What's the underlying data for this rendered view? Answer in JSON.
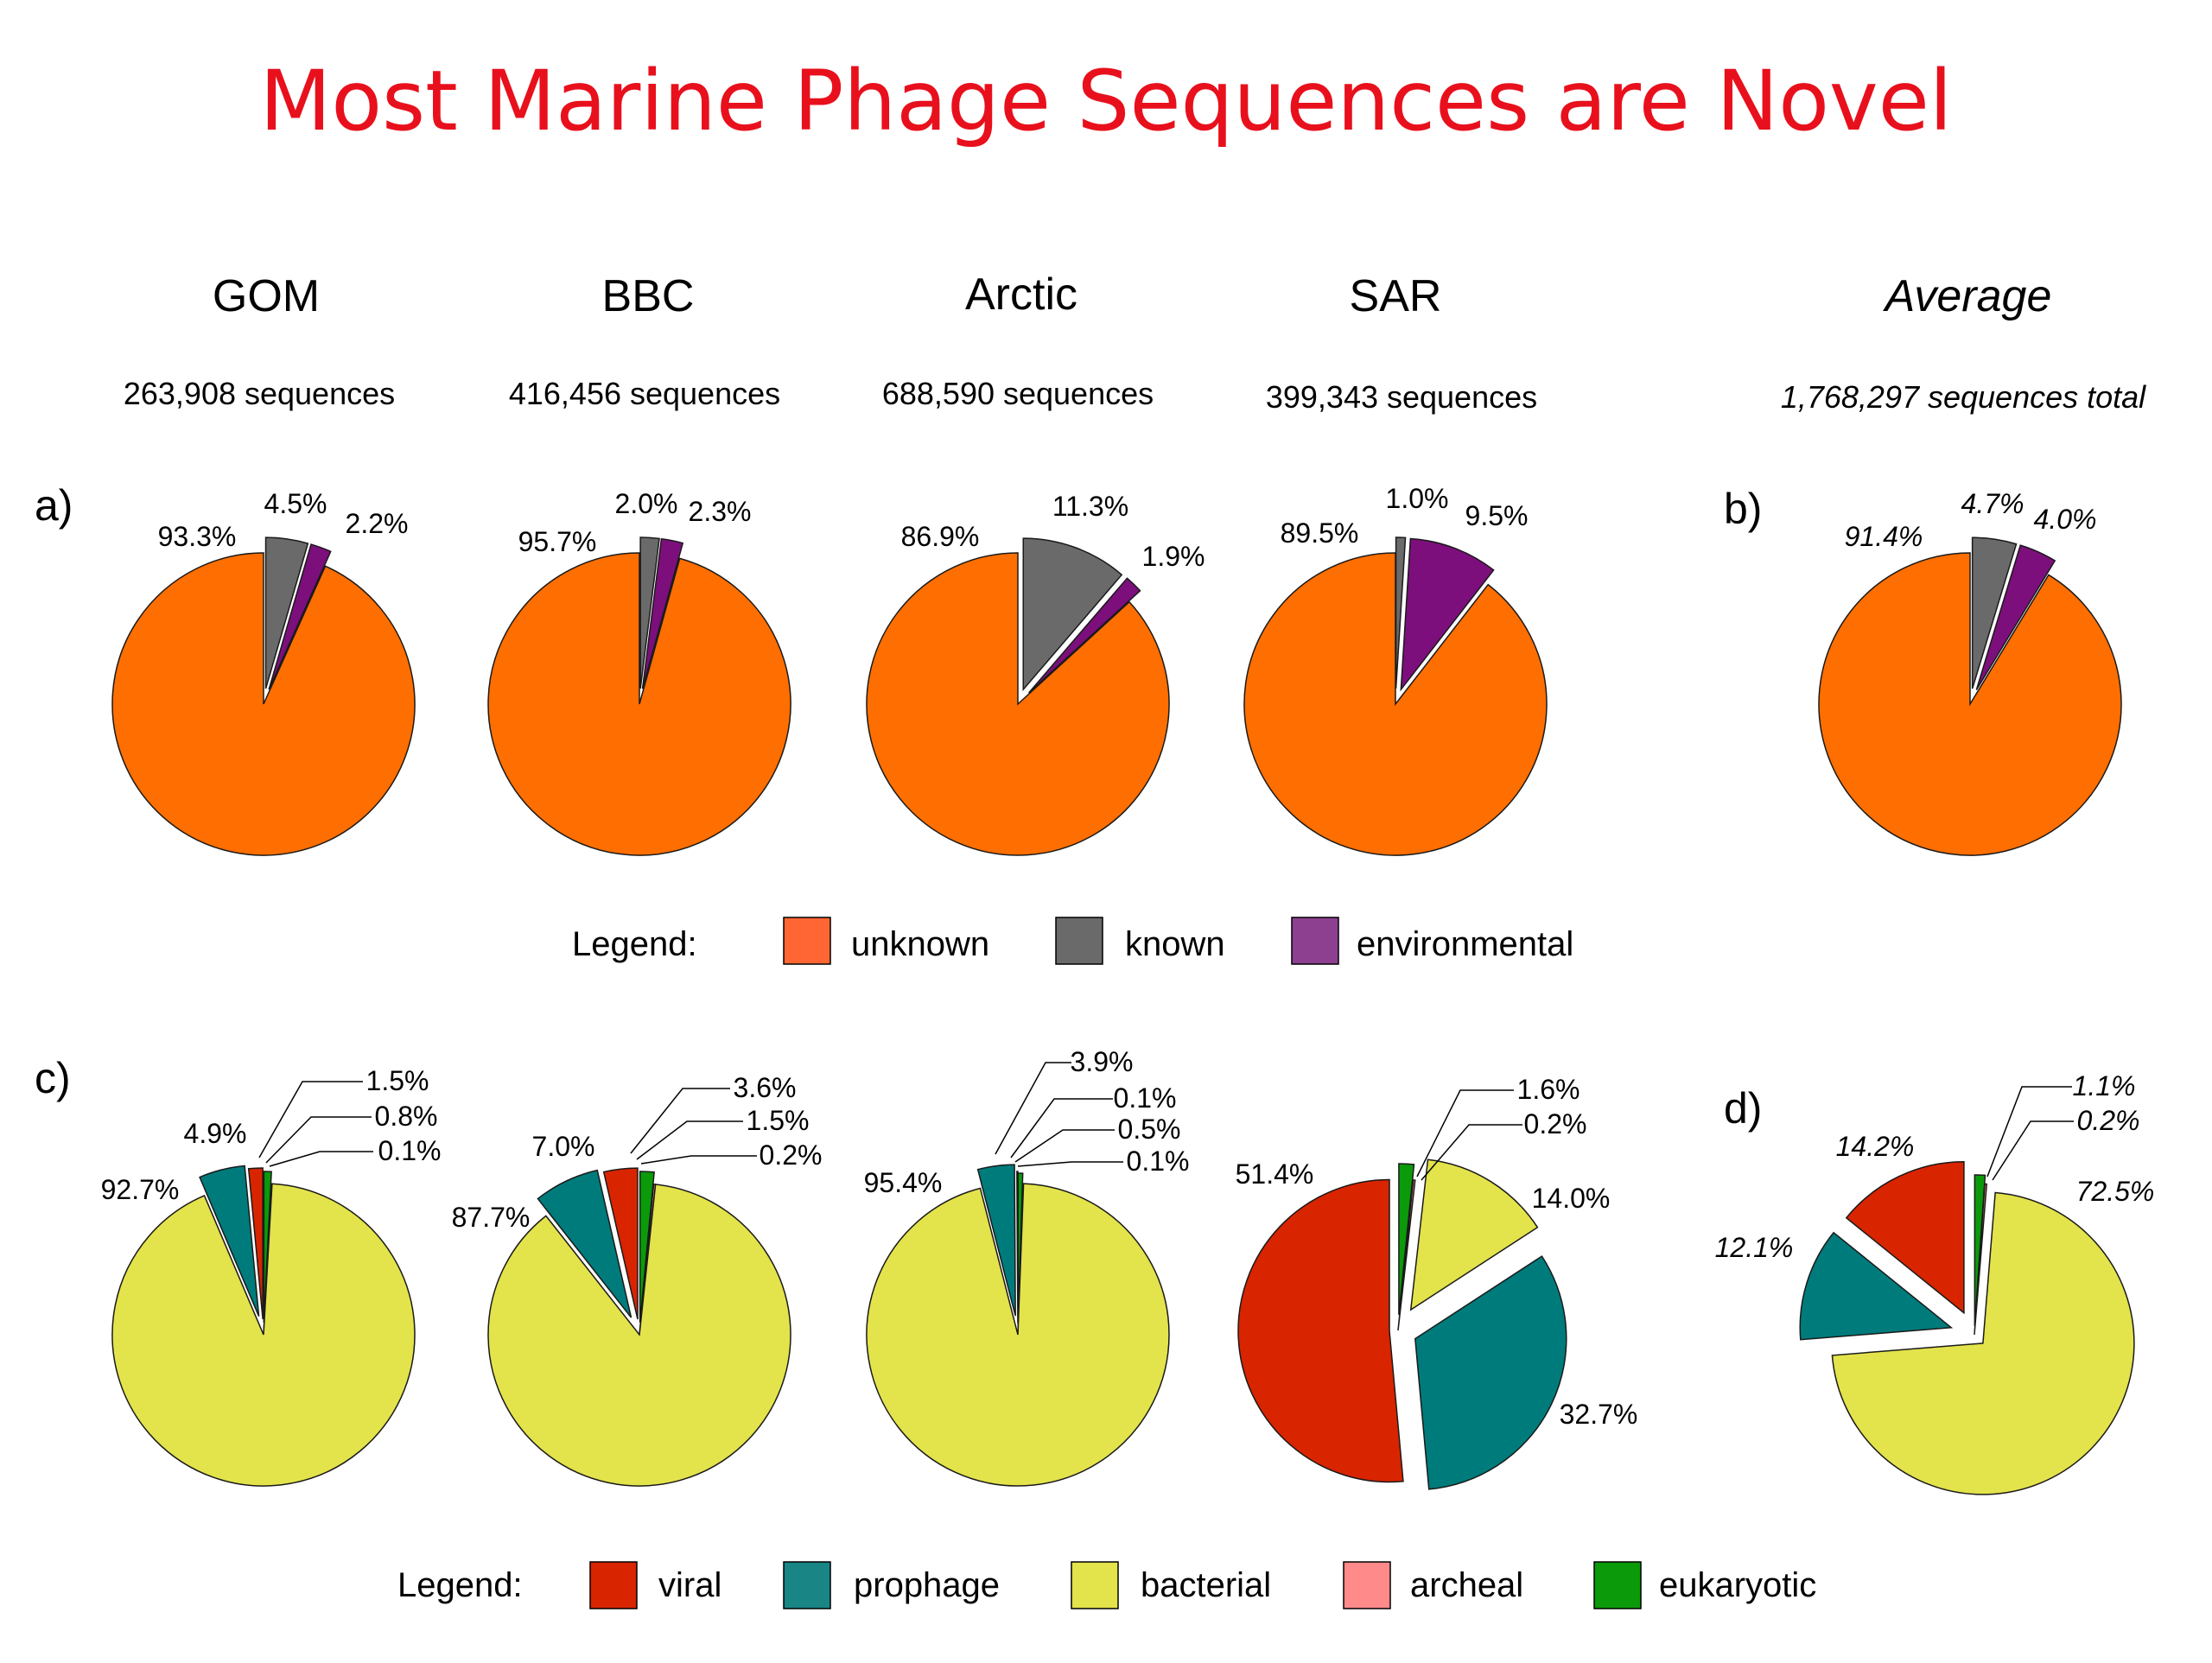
{
  "title": "Most Marine Phage Sequences are Novel",
  "colors": {
    "title": "#e8101c",
    "unknown": "#ff6e00",
    "known": "#6a6a6a",
    "environmental": "#7c0f7c",
    "viral": "#d92400",
    "prophage": "#007b7b",
    "bacterial": "#e3e34c",
    "archeal": "#ff8a8a",
    "eukaryotic": "#0a9a0a",
    "legend_unknown": "#ff6633",
    "legend_environmental": "#8e4090",
    "legend_prophage": "#1a8585"
  },
  "columns": [
    {
      "header": "GOM",
      "sequences": "263,908 sequences",
      "italic": false
    },
    {
      "header": "BBC",
      "sequences": "416,456 sequences",
      "italic": false
    },
    {
      "header": "Arctic",
      "sequences": "688,590 sequences",
      "italic": false
    },
    {
      "header": "SAR",
      "sequences": "399,343 sequences",
      "italic": false
    },
    {
      "header": "Average",
      "sequences": "1,768,297 sequences total",
      "italic": true
    }
  ],
  "panel_labels": {
    "a": "a)",
    "b": "b)",
    "c": "c)",
    "d": "d)"
  },
  "legend_top": {
    "label": "Legend:",
    "items": [
      {
        "name": "unknown",
        "color_key": "legend_unknown"
      },
      {
        "name": "known",
        "color_key": "known"
      },
      {
        "name": "environmental",
        "color_key": "legend_environmental"
      }
    ]
  },
  "legend_bottom": {
    "label": "Legend:",
    "items": [
      {
        "name": "viral",
        "color_key": "viral"
      },
      {
        "name": "prophage",
        "color_key": "legend_prophage"
      },
      {
        "name": "bacterial",
        "color_key": "bacterial"
      },
      {
        "name": "archeal",
        "color_key": "archeal"
      },
      {
        "name": "eukaryotic",
        "color_key": "eukaryotic"
      }
    ]
  },
  "chart_data": [
    {
      "type": "pie",
      "title": "GOM",
      "panel": "a",
      "categories": [
        "unknown",
        "known",
        "environmental"
      ],
      "values": [
        93.3,
        4.5,
        2.2
      ],
      "labels": [
        "93.3%",
        "4.5%",
        "2.2%"
      ]
    },
    {
      "type": "pie",
      "title": "BBC",
      "panel": "a",
      "categories": [
        "unknown",
        "known",
        "environmental"
      ],
      "values": [
        95.7,
        2.0,
        2.3
      ],
      "labels": [
        "95.7%",
        "2.0%",
        "2.3%"
      ]
    },
    {
      "type": "pie",
      "title": "Arctic",
      "panel": "a",
      "categories": [
        "unknown",
        "known",
        "environmental"
      ],
      "values": [
        86.9,
        11.3,
        1.9
      ],
      "labels": [
        "86.9%",
        "11.3%",
        "1.9%"
      ]
    },
    {
      "type": "pie",
      "title": "SAR",
      "panel": "a",
      "categories": [
        "unknown",
        "known",
        "environmental"
      ],
      "values": [
        89.5,
        1.0,
        9.5
      ],
      "labels": [
        "89.5%",
        "1.0%",
        "9.5%"
      ]
    },
    {
      "type": "pie",
      "title": "Average",
      "panel": "b",
      "categories": [
        "unknown",
        "known",
        "environmental"
      ],
      "values": [
        91.4,
        4.7,
        4.0
      ],
      "labels": [
        "91.4%",
        "4.7%",
        "4.0%"
      ]
    },
    {
      "type": "pie",
      "title": "GOM",
      "panel": "c",
      "categories": [
        "bacterial",
        "prophage",
        "viral",
        "archeal",
        "eukaryotic"
      ],
      "values": [
        92.7,
        4.9,
        1.5,
        0.1,
        0.8
      ],
      "labels": [
        "92.7%",
        "4.9%",
        "1.5%",
        "0.1%",
        "0.8%"
      ]
    },
    {
      "type": "pie",
      "title": "BBC",
      "panel": "c",
      "categories": [
        "bacterial",
        "prophage",
        "viral",
        "archeal",
        "eukaryotic"
      ],
      "values": [
        87.7,
        7.0,
        3.6,
        0.2,
        1.5
      ],
      "labels": [
        "87.7%",
        "7.0%",
        "3.6%",
        "0.2%",
        "1.5%"
      ]
    },
    {
      "type": "pie",
      "title": "Arctic",
      "panel": "c",
      "categories": [
        "bacterial",
        "prophage",
        "viral",
        "archeal",
        "eukaryotic"
      ],
      "values": [
        95.4,
        3.9,
        0.1,
        0.1,
        0.5
      ],
      "labels": [
        "95.4%",
        "3.9%",
        "0.1%",
        "0.1%",
        "0.5%"
      ]
    },
    {
      "type": "pie",
      "title": "SAR",
      "panel": "c",
      "categories": [
        "bacterial",
        "prophage",
        "viral",
        "archeal",
        "eukaryotic"
      ],
      "values": [
        14.0,
        32.7,
        51.4,
        0.2,
        1.6
      ],
      "labels": [
        "14.0%",
        "32.7%",
        "51.4%",
        "0.2%",
        "1.6%"
      ]
    },
    {
      "type": "pie",
      "title": "Average",
      "panel": "d",
      "categories": [
        "bacterial",
        "prophage",
        "viral",
        "archeal",
        "eukaryotic"
      ],
      "values": [
        72.5,
        12.1,
        14.2,
        0.2,
        1.1
      ],
      "labels": [
        "72.5%",
        "12.1%",
        "14.2%",
        "0.2%",
        "1.1%"
      ]
    }
  ]
}
